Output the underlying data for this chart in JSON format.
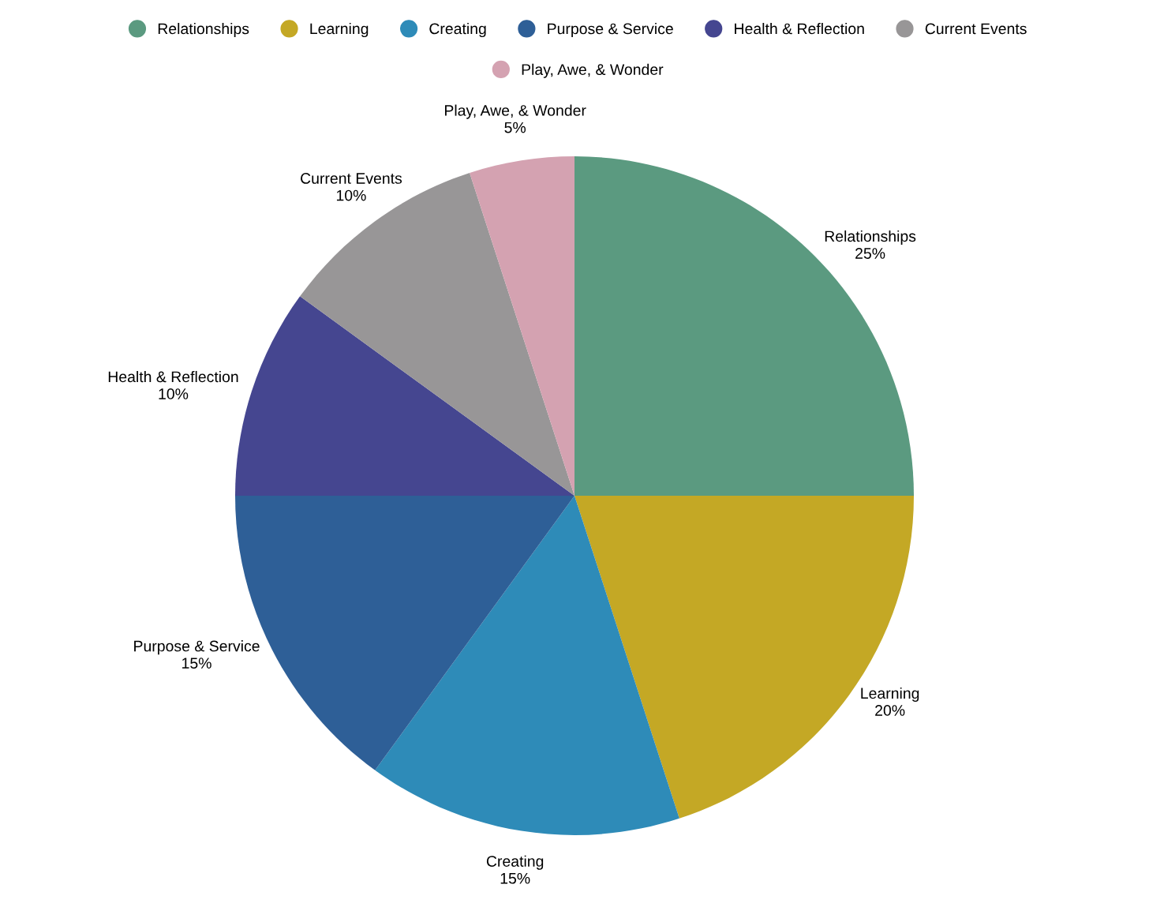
{
  "chart_data": {
    "type": "pie",
    "categories": [
      "Relationships",
      "Learning",
      "Creating",
      "Purpose & Service",
      "Health & Reflection",
      "Current Events",
      "Play, Awe, & Wonder"
    ],
    "values": [
      25,
      20,
      15,
      15,
      10,
      10,
      5
    ],
    "colors": [
      "#5b9a80",
      "#c4a825",
      "#2e8bb8",
      "#2e5f97",
      "#454690",
      "#989697",
      "#d4a2b1"
    ],
    "value_labels": [
      "25%",
      "20%",
      "15%",
      "15%",
      "10%",
      "10%",
      "5%"
    ],
    "legend": "top"
  }
}
